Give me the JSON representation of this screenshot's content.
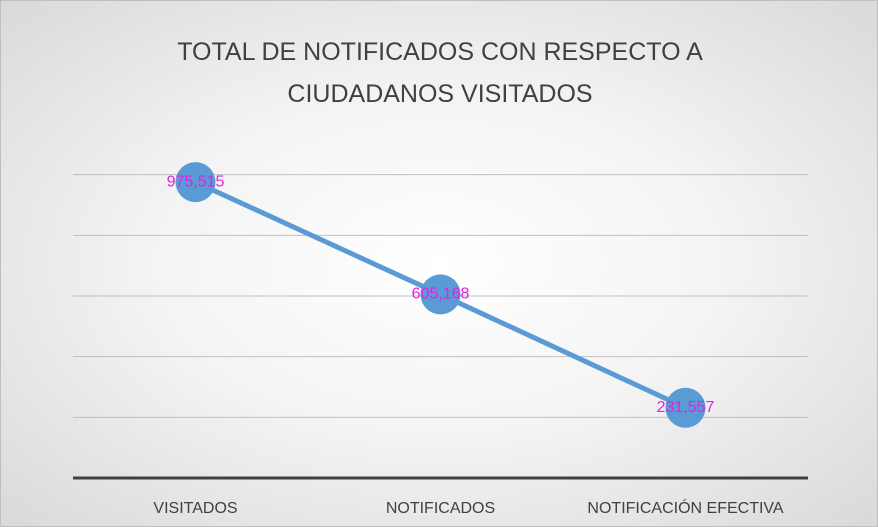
{
  "chart_data": {
    "type": "line",
    "title": "TOTAL DE NOTIFICADOS CON RESPECTO A CIUDADANOS VISITADOS",
    "categories": [
      "VISITADOS",
      "NOTIFICADOS",
      "NOTIFICACIÓN EFECTIVA"
    ],
    "values": [
      975515,
      605168,
      231557
    ],
    "value_labels": [
      "975,515",
      "605,168",
      "231,557"
    ],
    "color": "#5b9bd5",
    "label_color": "#e61ee6",
    "ylim": [
      0,
      1200000
    ],
    "yticks": [
      0,
      200000,
      400000,
      600000,
      800000,
      1000000
    ],
    "grid": true
  }
}
